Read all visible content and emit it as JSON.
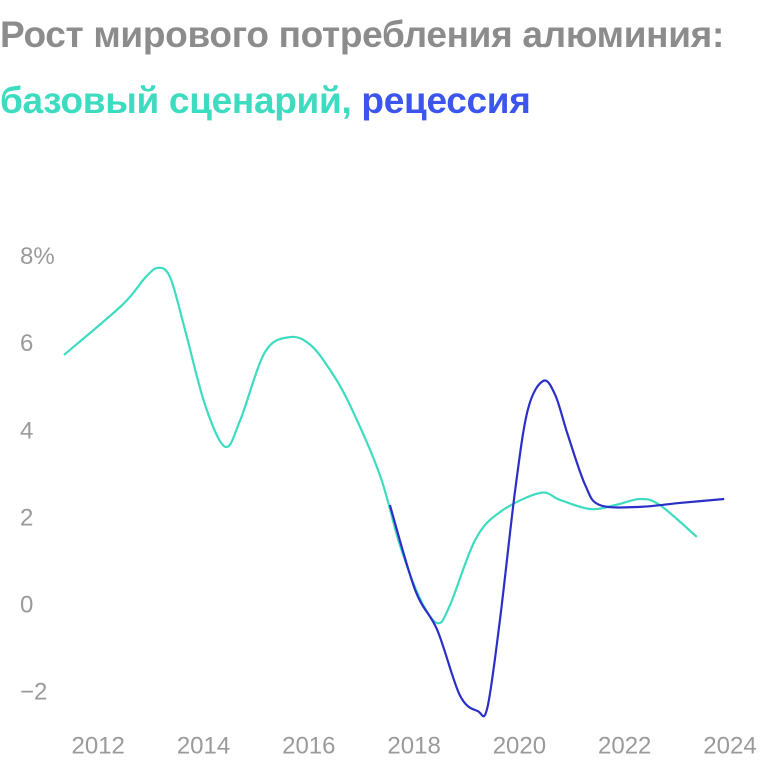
{
  "chart_data": {
    "type": "line",
    "title": "Рост мирового потребления алюминия:",
    "xlim": [
      2011.35,
      2024
    ],
    "xticks": [
      2012,
      2014,
      2016,
      2018,
      2020,
      2022,
      2024
    ],
    "ylim": [
      -2.5,
      8.5
    ],
    "yticks": [
      {
        "value": -2,
        "label": "−2"
      },
      0,
      2,
      4,
      6,
      {
        "value": 8,
        "label": "8%"
      }
    ],
    "grid": false,
    "series": [
      {
        "name": "базовый сценарий,",
        "color": "#3ddcc0",
        "x": [
          2011.35,
          2012.46,
          2012.89,
          2013.14,
          2013.37,
          2013.65,
          2014.03,
          2014.41,
          2014.7,
          2015.17,
          2015.65,
          2016.03,
          2016.4,
          2016.78,
          2017.35,
          2017.73,
          2018.11,
          2018.44,
          2018.68,
          2019.16,
          2019.63,
          2020.39,
          2020.77,
          2021.34,
          2021.82,
          2022.29,
          2022.67,
          2023.37
        ],
        "values": [
          5.77,
          6.92,
          7.54,
          7.77,
          7.54,
          6.34,
          4.62,
          3.66,
          4.28,
          5.84,
          6.18,
          6.0,
          5.43,
          4.62,
          3.01,
          1.4,
          0.18,
          -0.39,
          0.02,
          1.52,
          2.16,
          2.6,
          2.44,
          2.23,
          2.32,
          2.46,
          2.32,
          1.59
        ]
      },
      {
        "name": "рецессия",
        "color": "#2b2fc8",
        "x": [
          2017.54,
          2018.02,
          2018.44,
          2018.87,
          2019.21,
          2019.39,
          2019.63,
          2019.92,
          2020.16,
          2020.45,
          2020.68,
          2020.92,
          2021.25,
          2021.53,
          2022.29,
          2023.05,
          2023.89
        ],
        "values": [
          2.32,
          0.37,
          -0.55,
          -2.05,
          -2.41,
          -2.34,
          -0.32,
          2.67,
          4.51,
          5.17,
          4.85,
          3.93,
          2.78,
          2.32,
          2.28,
          2.37,
          2.46
        ]
      }
    ]
  }
}
